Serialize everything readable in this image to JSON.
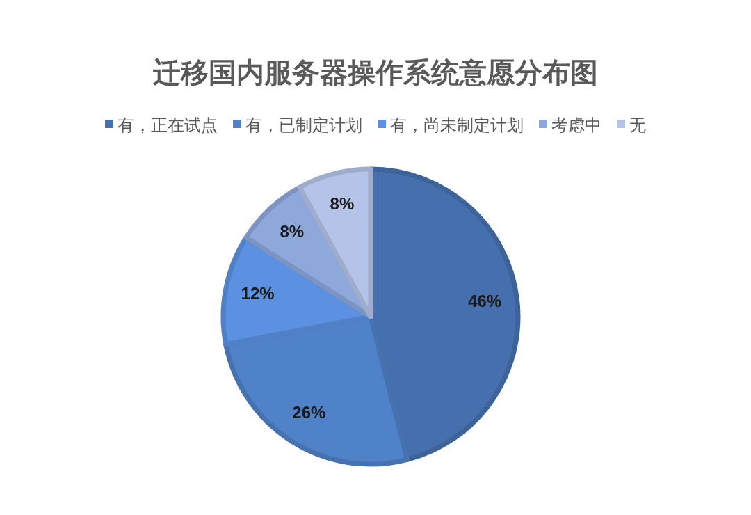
{
  "chart_data": {
    "type": "pie",
    "title": "迁移国内服务器操作系统意愿分布图",
    "categories": [
      "有，正在试点",
      "有，已制定计划",
      "有，尚未制定计划",
      "考虑中",
      "无"
    ],
    "values": [
      46,
      26,
      12,
      8,
      8
    ],
    "value_labels": [
      "46%",
      "26%",
      "12%",
      "8%",
      "8%"
    ],
    "colors": [
      "#4670ad",
      "#4f82c8",
      "#5b91e0",
      "#8ea8dc",
      "#b5c3e8"
    ],
    "legend": "top"
  }
}
